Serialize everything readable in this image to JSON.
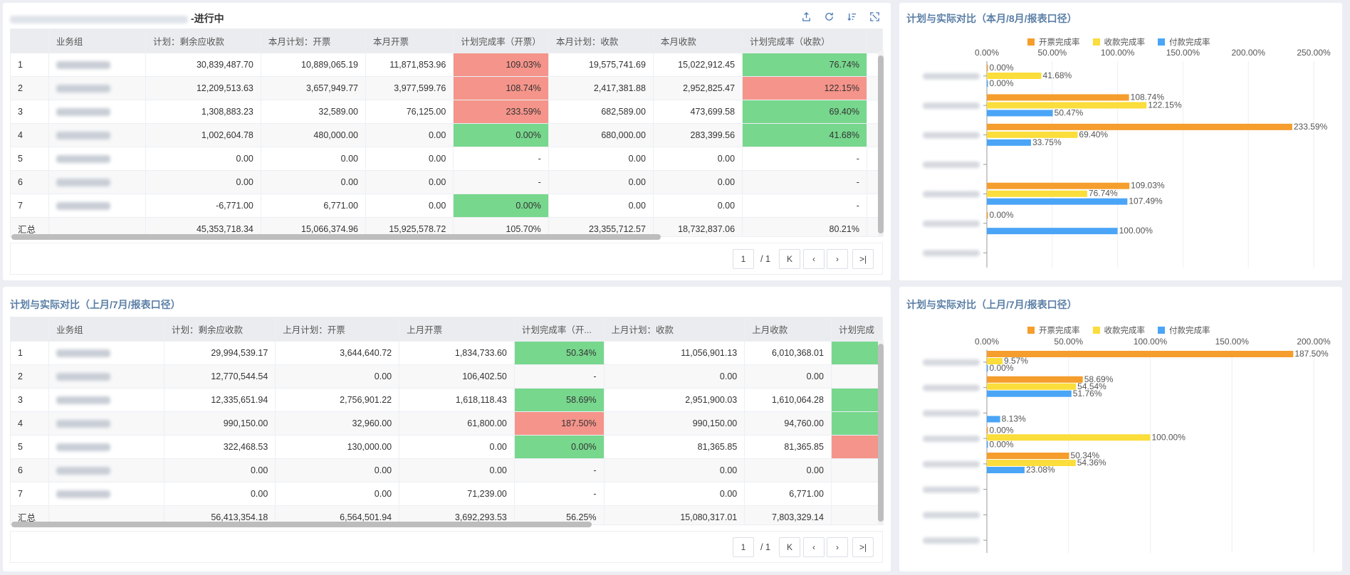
{
  "colors": {
    "open": "#f59d2d",
    "collect": "#fbdd3b",
    "pay": "#4aa5f7",
    "green": "#77d78d",
    "red": "#f5948a",
    "title": "#5b7fa6"
  },
  "panel1": {
    "title_suffix": "-进行中",
    "columns": [
      "",
      "业务组",
      "计划：剩余应收款",
      "本月计划：开票",
      "本月开票",
      "计划完成率（开票）",
      "本月计划：收款",
      "本月收款",
      "计划完成率（收款）"
    ],
    "rows": [
      {
        "idx": "1",
        "c2": "30,839,487.70",
        "c3": "10,889,065.19",
        "c4": "11,871,853.96",
        "c5": "109.03%",
        "c5s": "red",
        "c6": "19,575,741.69",
        "c7": "15,022,912.45",
        "c8": "76.74%",
        "c8s": "green"
      },
      {
        "idx": "2",
        "c2": "12,209,513.63",
        "c3": "3,657,949.77",
        "c4": "3,977,599.76",
        "c5": "108.74%",
        "c5s": "red",
        "c6": "2,417,381.88",
        "c7": "2,952,825.47",
        "c8": "122.15%",
        "c8s": "red"
      },
      {
        "idx": "3",
        "c2": "1,308,883.23",
        "c3": "32,589.00",
        "c4": "76,125.00",
        "c5": "233.59%",
        "c5s": "red",
        "c6": "682,589.00",
        "c7": "473,699.58",
        "c8": "69.40%",
        "c8s": "green"
      },
      {
        "idx": "4",
        "c2": "1,002,604.78",
        "c3": "480,000.00",
        "c4": "0.00",
        "c5": "0.00%",
        "c5s": "green",
        "c6": "680,000.00",
        "c7": "283,399.56",
        "c8": "41.68%",
        "c8s": "green"
      },
      {
        "idx": "5",
        "c2": "0.00",
        "c3": "0.00",
        "c4": "0.00",
        "c5": "-",
        "c5s": "",
        "c6": "0.00",
        "c7": "0.00",
        "c8": "-",
        "c8s": ""
      },
      {
        "idx": "6",
        "c2": "0.00",
        "c3": "0.00",
        "c4": "0.00",
        "c5": "-",
        "c5s": "",
        "c6": "0.00",
        "c7": "0.00",
        "c8": "-",
        "c8s": ""
      },
      {
        "idx": "7",
        "c2": "-6,771.00",
        "c3": "6,771.00",
        "c4": "0.00",
        "c5": "0.00%",
        "c5s": "green",
        "c6": "0.00",
        "c7": "0.00",
        "c8": "-",
        "c8s": ""
      },
      {
        "idx": "汇总",
        "c2": "45,353,718.34",
        "c3": "15,066,374.96",
        "c4": "15,925,578.72",
        "c5": "105.70%",
        "c5s": "",
        "c6": "23,355,712.57",
        "c7": "18,732,837.06",
        "c8": "80.21%",
        "c8s": ""
      }
    ],
    "pager": {
      "page": "1",
      "total": "/ 1"
    }
  },
  "panel2": {
    "title": "计划与实际对比（上月/7月/报表口径）",
    "columns": [
      "",
      "业务组",
      "计划：剩余应收款",
      "上月计划：开票",
      "上月开票",
      "计划完成率（开...",
      "上月计划：收款",
      "上月收款",
      "计划完成"
    ],
    "rows": [
      {
        "idx": "1",
        "c2": "29,994,539.17",
        "c3": "3,644,640.72",
        "c4": "1,834,733.60",
        "c5": "50.34%",
        "c5s": "green",
        "c6": "11,056,901.13",
        "c7": "6,010,368.01",
        "c8": "",
        "c8s": "green"
      },
      {
        "idx": "2",
        "c2": "12,770,544.54",
        "c3": "0.00",
        "c4": "106,402.50",
        "c5": "-",
        "c5s": "",
        "c6": "0.00",
        "c7": "0.00",
        "c8": "",
        "c8s": ""
      },
      {
        "idx": "3",
        "c2": "12,335,651.94",
        "c3": "2,756,901.22",
        "c4": "1,618,118.43",
        "c5": "58.69%",
        "c5s": "green",
        "c6": "2,951,900.03",
        "c7": "1,610,064.28",
        "c8": "",
        "c8s": "green"
      },
      {
        "idx": "4",
        "c2": "990,150.00",
        "c3": "32,960.00",
        "c4": "61,800.00",
        "c5": "187.50%",
        "c5s": "red",
        "c6": "990,150.00",
        "c7": "94,760.00",
        "c8": "",
        "c8s": "green"
      },
      {
        "idx": "5",
        "c2": "322,468.53",
        "c3": "130,000.00",
        "c4": "0.00",
        "c5": "0.00%",
        "c5s": "green",
        "c6": "81,365.85",
        "c7": "81,365.85",
        "c8": "",
        "c8s": "red"
      },
      {
        "idx": "6",
        "c2": "0.00",
        "c3": "0.00",
        "c4": "0.00",
        "c5": "-",
        "c5s": "",
        "c6": "0.00",
        "c7": "0.00",
        "c8": "",
        "c8s": ""
      },
      {
        "idx": "7",
        "c2": "0.00",
        "c3": "0.00",
        "c4": "71,239.00",
        "c5": "-",
        "c5s": "",
        "c6": "0.00",
        "c7": "6,771.00",
        "c8": "",
        "c8s": ""
      },
      {
        "idx": "汇总",
        "c2": "56,413,354.18",
        "c3": "6,564,501.94",
        "c4": "3,692,293.53",
        "c5": "56.25%",
        "c5s": "",
        "c6": "15,080,317.01",
        "c7": "7,803,329.14",
        "c8": "",
        "c8s": ""
      }
    ],
    "pager": {
      "page": "1",
      "total": "/ 1"
    }
  },
  "chart_data": [
    {
      "type": "bar",
      "orientation": "horizontal",
      "title": "计划与实际对比（本月/8月/报表口径）",
      "legend": [
        "开票完成率",
        "收款完成率",
        "付款完成率"
      ],
      "axis_ticks": [
        "0.00%",
        "50.00%",
        "100.00%",
        "150.00%",
        "200.00%",
        "250.00%"
      ],
      "xlim": [
        0,
        250
      ],
      "categories": 7,
      "series": [
        {
          "name": "开票完成率",
          "values": [
            0,
            108.74,
            233.59,
            null,
            109.03,
            0,
            null
          ],
          "labels": [
            "0.00%",
            "108.74%",
            "233.59%",
            "",
            "109.03%",
            "0.00%",
            ""
          ]
        },
        {
          "name": "收款完成率",
          "values": [
            41.68,
            122.15,
            69.4,
            null,
            76.74,
            null,
            null
          ],
          "labels": [
            "41.68%",
            "122.15%",
            "69.40%",
            "",
            "76.74%",
            "",
            ""
          ]
        },
        {
          "name": "付款完成率",
          "values": [
            0,
            50.47,
            33.75,
            null,
            107.49,
            100.0,
            null
          ],
          "labels": [
            "0.00%",
            "50.47%",
            "33.75%",
            "",
            "107.49%",
            "100.00%",
            ""
          ]
        }
      ]
    },
    {
      "type": "bar",
      "orientation": "horizontal",
      "title": "计划与实际对比（上月/7月/报表口径）",
      "legend": [
        "开票完成率",
        "收款完成率",
        "付款完成率"
      ],
      "axis_ticks": [
        "0.00%",
        "50.00%",
        "100.00%",
        "150.00%",
        "200.00%"
      ],
      "xlim": [
        0,
        200
      ],
      "categories": 8,
      "series": [
        {
          "name": "开票完成率",
          "values": [
            187.5,
            58.69,
            null,
            0,
            50.34,
            null,
            null,
            null
          ],
          "labels": [
            "187.50%",
            "58.69%",
            "",
            "0.00%",
            "50.34%",
            "",
            "",
            ""
          ]
        },
        {
          "name": "收款完成率",
          "values": [
            9.57,
            54.54,
            null,
            100.0,
            54.36,
            null,
            null,
            null
          ],
          "labels": [
            "9.57%",
            "54.54%",
            "",
            "100.00%",
            "54.36%",
            "",
            "",
            ""
          ]
        },
        {
          "name": "付款完成率",
          "values": [
            0,
            51.76,
            8.13,
            0,
            23.08,
            null,
            null,
            null
          ],
          "labels": [
            "0.00%",
            "51.76%",
            "8.13%",
            "0.00%",
            "23.08%",
            "",
            "",
            ""
          ]
        }
      ]
    }
  ]
}
